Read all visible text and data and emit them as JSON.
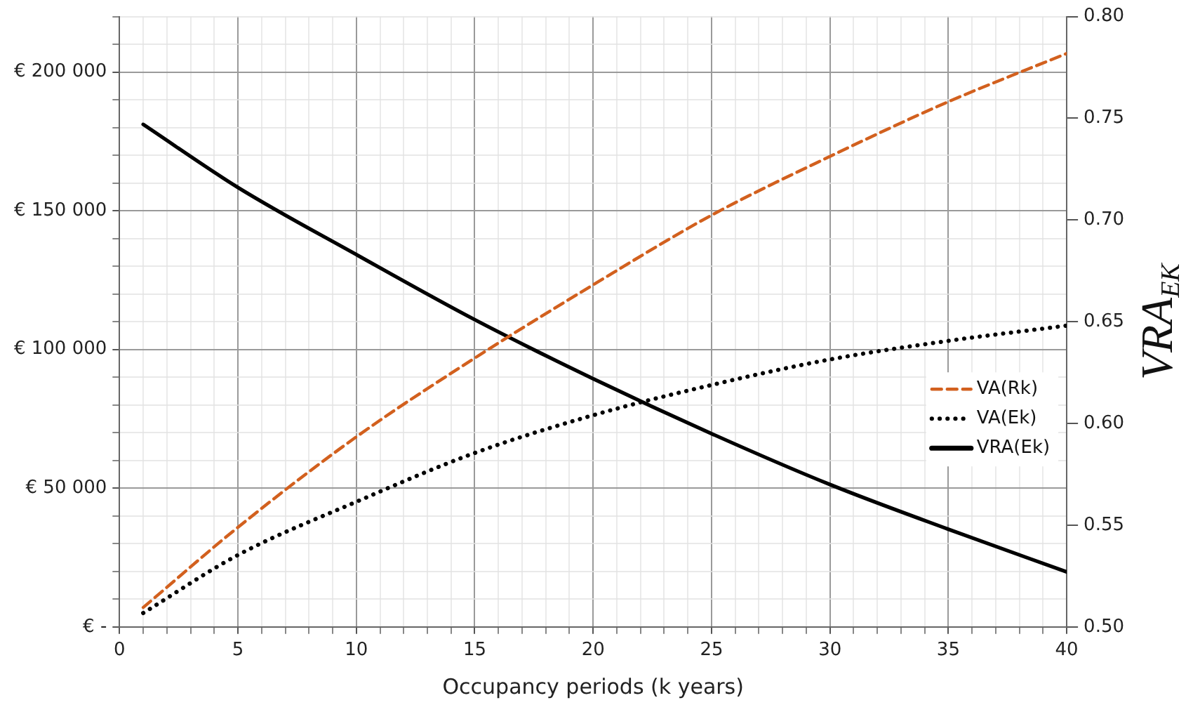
{
  "chart_data": {
    "type": "line",
    "xlabel": "Occupancy periods (k years)",
    "y2label": "VRA$_{EK}$",
    "x": [
      1,
      5,
      10,
      15,
      20,
      25,
      30,
      35,
      40
    ],
    "series": [
      {
        "name": "VA(Rk)",
        "color": "#d2601e",
        "line_style": "dashed",
        "axis": "y",
        "values": [
          7000,
          35900,
          68500,
          96900,
          123300,
          148400,
          169600,
          189300,
          206700
        ]
      },
      {
        "name": "VA(Ek)",
        "color": "#000000",
        "line_style": "dotted",
        "axis": "y",
        "values": [
          5000,
          25900,
          45100,
          62700,
          76300,
          87200,
          96400,
          103100,
          108600
        ]
      },
      {
        "name": "VRA(Ek)",
        "color": "#000000",
        "line_style": "solid",
        "axis": "y2",
        "values": [
          0.747,
          0.716,
          0.683,
          0.651,
          0.622,
          0.595,
          0.57,
          0.548,
          0.527
        ]
      }
    ],
    "xlim": [
      0,
      40
    ],
    "xticks": [
      0,
      {
        "value": 1,
        "label": null
      },
      {
        "value": 2,
        "label": null
      },
      {
        "value": 3,
        "label": null
      },
      {
        "value": 4,
        "label": null
      },
      5,
      {
        "value": 6,
        "label": null
      },
      {
        "value": 7,
        "label": null
      },
      {
        "value": 8,
        "label": null
      },
      {
        "value": 9,
        "label": null
      },
      10,
      {
        "value": 11,
        "label": null
      },
      {
        "value": 12,
        "label": null
      },
      {
        "value": 13,
        "label": null
      },
      {
        "value": 14,
        "label": null
      },
      15,
      {
        "value": 16,
        "label": null
      },
      {
        "value": 17,
        "label": null
      },
      {
        "value": 18,
        "label": null
      },
      {
        "value": 19,
        "label": null
      },
      20,
      {
        "value": 21,
        "label": null
      },
      {
        "value": 22,
        "label": null
      },
      {
        "value": 23,
        "label": null
      },
      {
        "value": 24,
        "label": null
      },
      25,
      {
        "value": 26,
        "label": null
      },
      {
        "value": 27,
        "label": null
      },
      {
        "value": 28,
        "label": null
      },
      {
        "value": 29,
        "label": null
      },
      30,
      {
        "value": 31,
        "label": null
      },
      {
        "value": 32,
        "label": null
      },
      {
        "value": 33,
        "label": null
      },
      {
        "value": 34,
        "label": null
      },
      35,
      {
        "value": 36,
        "label": null
      },
      {
        "value": 37,
        "label": null
      },
      {
        "value": 38,
        "label": null
      },
      {
        "value": 39,
        "label": null
      },
      40
    ],
    "ylim": [
      0,
      220000
    ],
    "yticks": [
      {
        "value": 0,
        "label": "€ -"
      },
      {
        "value": 10000,
        "label": null
      },
      {
        "value": 20000,
        "label": null
      },
      {
        "value": 30000,
        "label": null
      },
      {
        "value": 40000,
        "label": null
      },
      {
        "value": 50000,
        "label": "€ 50 000"
      },
      {
        "value": 60000,
        "label": null
      },
      {
        "value": 70000,
        "label": null
      },
      {
        "value": 80000,
        "label": null
      },
      {
        "value": 90000,
        "label": null
      },
      {
        "value": 100000,
        "label": "€ 100 000"
      },
      {
        "value": 110000,
        "label": null
      },
      {
        "value": 120000,
        "label": null
      },
      {
        "value": 130000,
        "label": null
      },
      {
        "value": 140000,
        "label": null
      },
      {
        "value": 150000,
        "label": "€ 150 000"
      },
      {
        "value": 160000,
        "label": null
      },
      {
        "value": 170000,
        "label": null
      },
      {
        "value": 180000,
        "label": null
      },
      {
        "value": 190000,
        "label": null
      },
      {
        "value": 200000,
        "label": "€ 200 000"
      },
      {
        "value": 210000,
        "label": null
      },
      {
        "value": 220000,
        "label": null
      }
    ],
    "y2lim": [
      0.5,
      0.8
    ],
    "y2ticks": [
      {
        "value": 0.5,
        "label": "0.50"
      },
      {
        "value": 0.55,
        "label": "0.55"
      },
      {
        "value": 0.6,
        "label": "0.60"
      },
      {
        "value": 0.65,
        "label": "0.65"
      },
      {
        "value": 0.7,
        "label": "0.70"
      },
      {
        "value": 0.75,
        "label": "0.75"
      },
      {
        "value": 0.8,
        "label": "0.80"
      }
    ],
    "grid": "xy",
    "legend": "right",
    "marker": "none"
  }
}
